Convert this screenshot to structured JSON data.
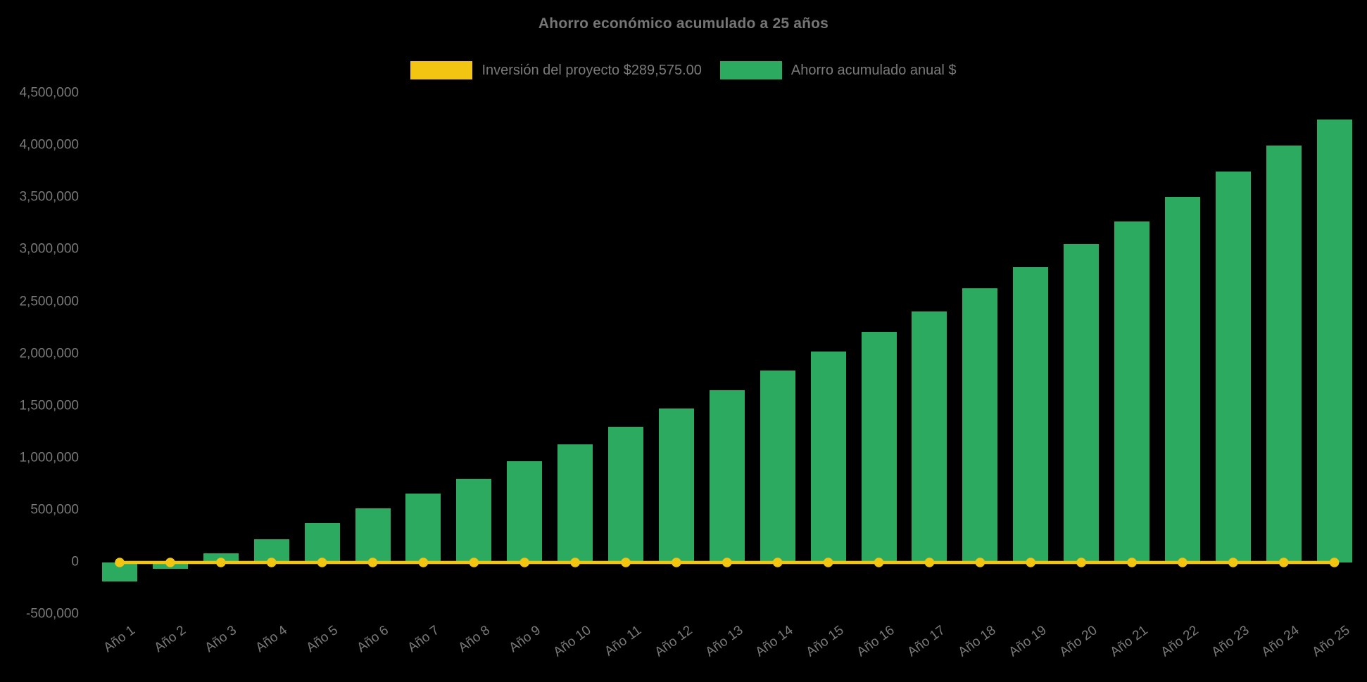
{
  "title": "Ahorro económico acumulado a 25 años",
  "colors": {
    "background": "#000000",
    "bar": "#2CAB60",
    "line": "#F1C512",
    "text": "#7a7a7a",
    "title_text": "#757575"
  },
  "legend": {
    "items": [
      {
        "label": "Inversión del proyecto $289,575.00",
        "color": "#F1C512",
        "series": "line"
      },
      {
        "label": "Ahorro acumulado anual $",
        "color": "#2CAB60",
        "series": "bar"
      }
    ]
  },
  "chart_data": {
    "type": "combo-bar-line",
    "title": "Ahorro económico acumulado a 25 años",
    "categories": [
      "Año 1",
      "Año 2",
      "Año 3",
      "Año 4",
      "Año 5",
      "Año 6",
      "Año 7",
      "Año 8",
      "Año 9",
      "Año 10",
      "Año 11",
      "Año 12",
      "Año 13",
      "Año 14",
      "Año 15",
      "Año 16",
      "Año 17",
      "Año 18",
      "Año 19",
      "Año 20",
      "Año 21",
      "Año 22",
      "Año 23",
      "Año 24",
      "Año 25"
    ],
    "series": [
      {
        "name": "Inversión del proyecto $289,575.00",
        "type": "line",
        "color": "#F1C512",
        "marker": "circle",
        "investment_amount_text": "$289,575.00",
        "values": [
          0,
          0,
          0,
          0,
          0,
          0,
          0,
          0,
          0,
          0,
          0,
          0,
          0,
          0,
          0,
          0,
          0,
          0,
          0,
          0,
          0,
          0,
          0,
          0,
          0
        ]
      },
      {
        "name": "Ahorro acumulado anual $",
        "type": "bar",
        "color": "#2CAB60",
        "values": [
          -180000,
          -60000,
          90000,
          225000,
          375000,
          520000,
          660000,
          805000,
          970000,
          1135000,
          1300000,
          1475000,
          1655000,
          1840000,
          2025000,
          2215000,
          2410000,
          2630000,
          2835000,
          3055000,
          3275000,
          3510000,
          3750000,
          4000000,
          4250000
        ]
      }
    ],
    "y_axis": {
      "min": -500000,
      "max": 4500000,
      "step": 500000,
      "tick_labels_ascending": [
        "-500,000",
        "0",
        "500,000",
        "1,000,000",
        "1,500,000",
        "2,000,000",
        "2,500,000",
        "3,000,000",
        "3,500,000",
        "4,000,000",
        "4,500,000"
      ]
    },
    "x_axis": {
      "tick_rotation_deg": -36
    },
    "legend_position": "top",
    "grid": false
  }
}
